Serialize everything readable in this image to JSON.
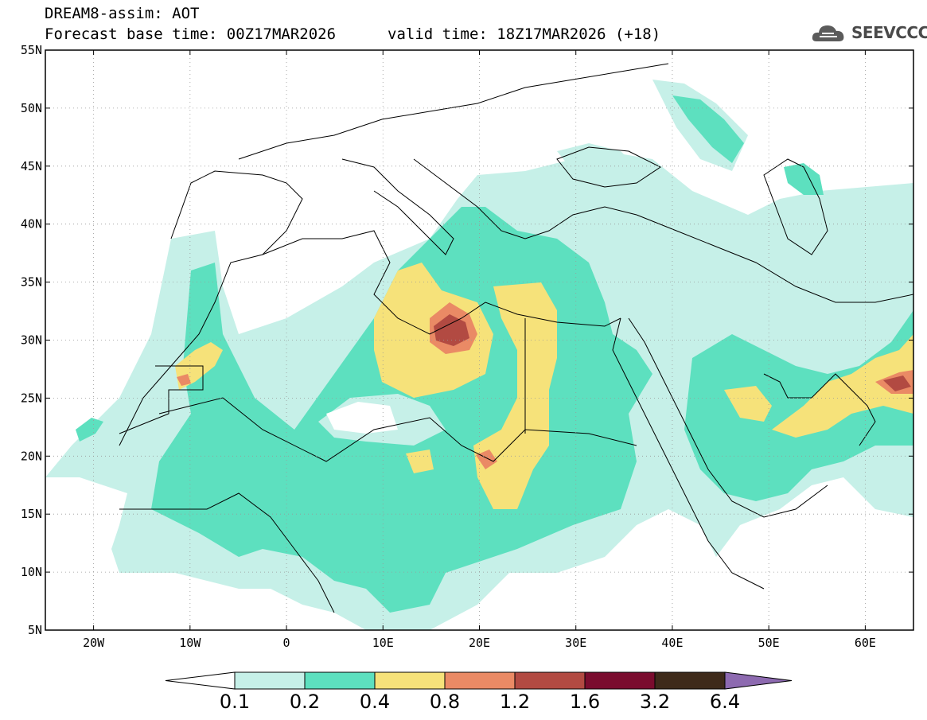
{
  "header": {
    "line1": "DREAM8-assim: AOT",
    "line2": "Forecast base time: 00Z17MAR2026",
    "line2b": "valid time: 18Z17MAR2026 (+18)",
    "logo_text": "SEEVCCC"
  },
  "map": {
    "lat_labels": [
      "55N",
      "50N",
      "45N",
      "40N",
      "35N",
      "30N",
      "25N",
      "20N",
      "15N",
      "10N",
      "5N"
    ],
    "lon_labels": [
      "20W",
      "10W",
      "0",
      "10E",
      "20E",
      "30E",
      "40E",
      "50E",
      "60E"
    ],
    "lon_range": [
      -25,
      65
    ],
    "lat_range": [
      5,
      55
    ]
  },
  "legend": {
    "levels": [
      "0.1",
      "0.2",
      "0.4",
      "0.8",
      "1.2",
      "1.6",
      "3.2",
      "6.4"
    ],
    "colors": [
      "#ffffff",
      "#c6f0e8",
      "#5de0bf",
      "#f6e27a",
      "#ea8a65",
      "#b24a42",
      "#7a0c2e",
      "#3e2a1a",
      "#8d6ab0"
    ]
  }
}
